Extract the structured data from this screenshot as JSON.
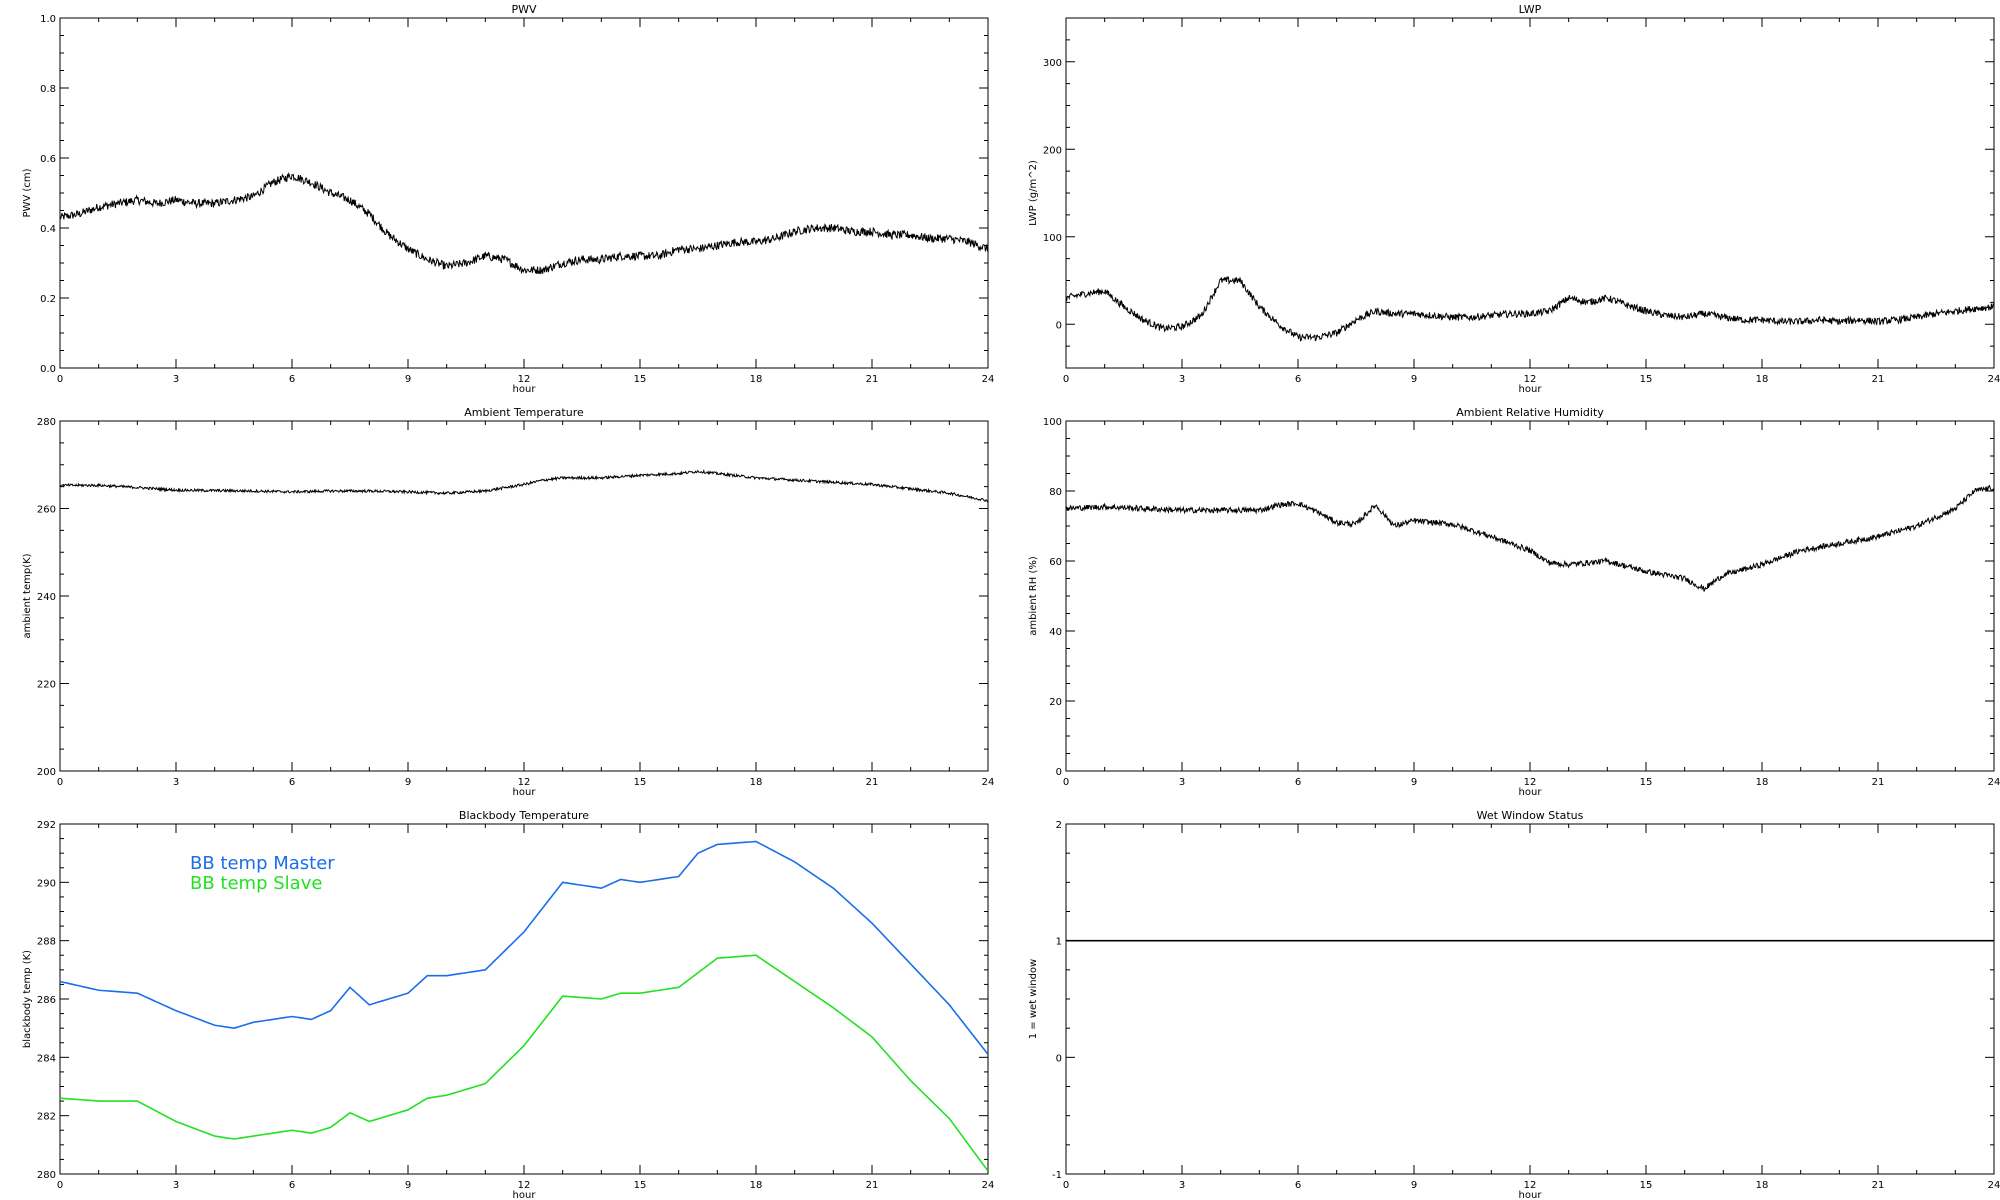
{
  "chart_data": [
    {
      "type": "line",
      "title": "PWV",
      "xlabel": "hour",
      "ylabel": "PWV (cm)",
      "xlim": [
        0,
        24
      ],
      "ylim": [
        0,
        1.0
      ],
      "xticks": [
        "0",
        "3",
        "6",
        "9",
        "12",
        "15",
        "18",
        "21",
        "24"
      ],
      "yticks": [
        "0.0",
        "0.2",
        "0.4",
        "0.6",
        "0.8",
        "1.0"
      ],
      "grid": false,
      "series": [
        {
          "color": "#000000",
          "noise": 0.012,
          "x": [
            0,
            0.5,
            1,
            1.5,
            2,
            2.5,
            3,
            3.5,
            4,
            4.5,
            5,
            5.5,
            6,
            6.5,
            7,
            7.5,
            8,
            8.5,
            9,
            9.5,
            10,
            10.5,
            11,
            11.5,
            12,
            12.5,
            13,
            13.5,
            14,
            14.5,
            15,
            15.5,
            16,
            16.5,
            17,
            17.5,
            18,
            18.5,
            19,
            19.5,
            20,
            20.5,
            21,
            21.5,
            22,
            22.5,
            23,
            23.5,
            24
          ],
          "y": [
            0.43,
            0.44,
            0.46,
            0.47,
            0.48,
            0.47,
            0.48,
            0.47,
            0.47,
            0.48,
            0.49,
            0.53,
            0.55,
            0.53,
            0.5,
            0.48,
            0.44,
            0.38,
            0.34,
            0.31,
            0.29,
            0.3,
            0.32,
            0.31,
            0.28,
            0.28,
            0.3,
            0.31,
            0.31,
            0.32,
            0.32,
            0.32,
            0.34,
            0.34,
            0.35,
            0.36,
            0.36,
            0.37,
            0.39,
            0.4,
            0.4,
            0.39,
            0.39,
            0.38,
            0.38,
            0.37,
            0.37,
            0.36,
            0.34
          ]
        }
      ]
    },
    {
      "type": "line",
      "title": "LWP",
      "xlabel": "hour",
      "ylabel": "LWP (g/m^2)",
      "xlim": [
        0,
        24
      ],
      "ylim": [
        -50,
        350
      ],
      "xticks": [
        "0",
        "3",
        "6",
        "9",
        "12",
        "15",
        "18",
        "21",
        "24"
      ],
      "yticks": [
        "0",
        "100",
        "200",
        "300"
      ],
      "ytick_values": [
        0,
        100,
        200,
        300
      ],
      "grid": false,
      "series": [
        {
          "color": "#000000",
          "noise": 4,
          "x": [
            0,
            0.5,
            1,
            1.5,
            2,
            2.5,
            3,
            3.5,
            4,
            4.5,
            5,
            5.5,
            6,
            6.5,
            7,
            7.5,
            8,
            8.5,
            9,
            9.5,
            10,
            10.5,
            11,
            11.5,
            12,
            12.5,
            13,
            13.5,
            14,
            14.5,
            15,
            15.5,
            16,
            16.5,
            17,
            17.5,
            18,
            18.5,
            19,
            19.5,
            20,
            20.5,
            21,
            21.5,
            22,
            22.5,
            23,
            23.5,
            24
          ],
          "y": [
            30,
            35,
            38,
            20,
            5,
            -5,
            -3,
            10,
            50,
            50,
            20,
            0,
            -15,
            -15,
            -10,
            5,
            15,
            12,
            12,
            10,
            8,
            8,
            10,
            12,
            12,
            15,
            30,
            25,
            30,
            22,
            15,
            10,
            8,
            12,
            8,
            5,
            5,
            3,
            3,
            5,
            3,
            5,
            3,
            5,
            8,
            12,
            15,
            18,
            20
          ]
        }
      ]
    },
    {
      "type": "line",
      "title": "Ambient Temperature",
      "xlabel": "hour",
      "ylabel": "ambient temp(K)",
      "xlim": [
        0,
        24
      ],
      "ylim": [
        200,
        280
      ],
      "xticks": [
        "0",
        "3",
        "6",
        "9",
        "12",
        "15",
        "18",
        "21",
        "24"
      ],
      "yticks": [
        "200",
        "220",
        "240",
        "260",
        "280"
      ],
      "ytick_values": [
        200,
        220,
        240,
        260,
        280
      ],
      "grid": false,
      "series": [
        {
          "color": "#000000",
          "noise": 0.3,
          "x": [
            0,
            1,
            2,
            3,
            4,
            5,
            6,
            7,
            8,
            9,
            10,
            11,
            12,
            12.5,
            13,
            14,
            15,
            16,
            16.5,
            17,
            18,
            19,
            20,
            21,
            22,
            23,
            24
          ],
          "y": [
            265.3,
            265.3,
            264.8,
            264.2,
            264.1,
            264,
            263.8,
            264,
            264,
            263.8,
            263.5,
            264,
            265.5,
            266.5,
            267,
            267,
            267.6,
            268,
            268.5,
            268,
            267,
            266.5,
            266,
            265.5,
            264.5,
            263.5,
            261.8
          ]
        }
      ]
    },
    {
      "type": "line",
      "title": "Ambient Relative Humidity",
      "xlabel": "hour",
      "ylabel": "ambient RH (%)",
      "xlim": [
        0,
        24
      ],
      "ylim": [
        0,
        100
      ],
      "xticks": [
        "0",
        "3",
        "6",
        "9",
        "12",
        "15",
        "18",
        "21",
        "24"
      ],
      "yticks": [
        "0",
        "20",
        "40",
        "60",
        "80",
        "100"
      ],
      "ytick_values": [
        0,
        20,
        40,
        60,
        80,
        100
      ],
      "grid": false,
      "series": [
        {
          "color": "#000000",
          "noise": 0.8,
          "x": [
            0,
            1,
            2,
            3,
            4,
            5,
            5.5,
            6,
            6.5,
            7,
            7.5,
            8,
            8.5,
            9,
            10,
            11,
            12,
            12.5,
            13,
            14,
            15,
            15.5,
            16,
            16.5,
            17,
            18,
            19,
            20,
            21,
            22,
            23,
            23.5,
            24
          ],
          "y": [
            75,
            75.5,
            75,
            74.5,
            74.5,
            74.5,
            76,
            76.5,
            74,
            71,
            70.5,
            76,
            70,
            71.5,
            70.5,
            67,
            63,
            59.5,
            59,
            60,
            57,
            56,
            55,
            52,
            56,
            59,
            63,
            65,
            67,
            70,
            75,
            80,
            81
          ]
        }
      ]
    },
    {
      "type": "line",
      "title": "Blackbody Temperature",
      "xlabel": "hour",
      "ylabel": "blackbody temp (K)",
      "xlim": [
        0,
        24
      ],
      "ylim": [
        280,
        292
      ],
      "xticks": [
        "0",
        "3",
        "6",
        "9",
        "12",
        "15",
        "18",
        "21",
        "24"
      ],
      "yticks": [
        "280",
        "282",
        "284",
        "286",
        "288",
        "290",
        "292"
      ],
      "ytick_values": [
        280,
        282,
        284,
        286,
        288,
        290,
        292
      ],
      "grid": false,
      "legend_position": "upper-left",
      "series": [
        {
          "name": "BB temp Master",
          "color": "#1a6eea",
          "noise": 0,
          "x": [
            0,
            1,
            2,
            3,
            4,
            4.5,
            5,
            6,
            6.5,
            7,
            7.5,
            8,
            9,
            9.5,
            10,
            11,
            12,
            13,
            14,
            14.5,
            15,
            16,
            16.5,
            17,
            18,
            19,
            20,
            21,
            22,
            23,
            24
          ],
          "y": [
            286.6,
            286.3,
            286.2,
            285.6,
            285.1,
            285,
            285.2,
            285.4,
            285.3,
            285.6,
            286.4,
            285.8,
            286.2,
            286.8,
            286.8,
            287,
            288.3,
            290,
            289.8,
            290.1,
            290,
            290.2,
            291,
            291.3,
            291.4,
            290.7,
            289.8,
            288.6,
            287.2,
            285.8,
            284.1
          ]
        },
        {
          "name": "BB temp Slave",
          "color": "#22e022",
          "noise": 0,
          "x": [
            0,
            1,
            2,
            3,
            4,
            4.5,
            5,
            6,
            6.5,
            7,
            7.5,
            8,
            9,
            9.5,
            10,
            11,
            12,
            13,
            14,
            14.5,
            15,
            16,
            16.5,
            17,
            18,
            19,
            20,
            21,
            22,
            23,
            24
          ],
          "y": [
            282.6,
            282.5,
            282.5,
            281.8,
            281.3,
            281.2,
            281.3,
            281.5,
            281.4,
            281.6,
            282.1,
            281.8,
            282.2,
            282.6,
            282.7,
            283.1,
            284.4,
            286.1,
            286,
            286.2,
            286.2,
            286.4,
            286.9,
            287.4,
            287.5,
            286.6,
            285.7,
            284.7,
            283.2,
            281.9,
            280.1
          ]
        }
      ]
    },
    {
      "type": "line",
      "title": "Wet Window Status",
      "xlabel": "hour",
      "ylabel": "1 = wet window",
      "xlim": [
        0,
        24
      ],
      "ylim": [
        -1,
        2
      ],
      "xticks": [
        "0",
        "3",
        "6",
        "9",
        "12",
        "15",
        "18",
        "21",
        "24"
      ],
      "yticks": [
        "-1",
        "0",
        "1",
        "2"
      ],
      "ytick_values": [
        -1,
        0,
        1,
        2
      ],
      "grid": false,
      "series": [
        {
          "color": "#000000",
          "noise": 0,
          "x": [
            0,
            24
          ],
          "y": [
            1,
            1
          ]
        }
      ]
    }
  ]
}
